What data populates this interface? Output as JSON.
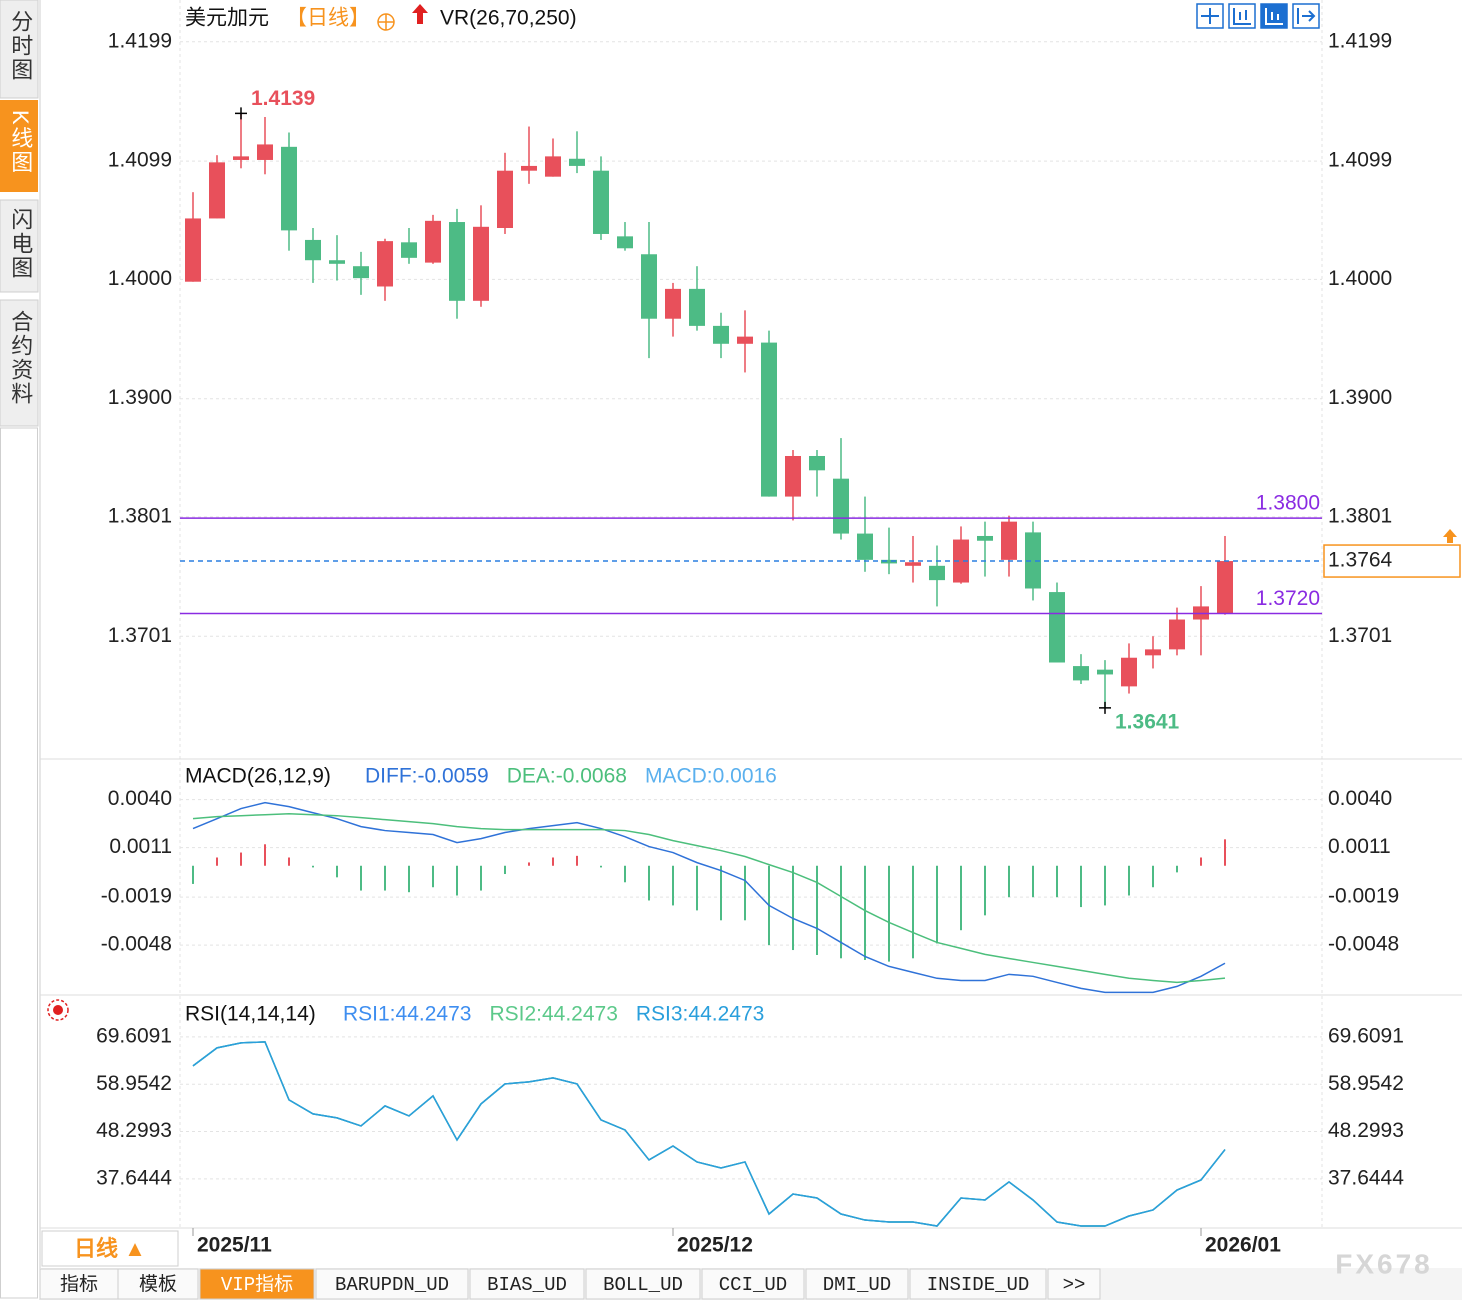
{
  "chart_data": [
    {
      "type": "candlestick",
      "title": "美元加元",
      "period": "【日线】",
      "indicator": "VR(26,70,250)",
      "up_color": "#e8505b",
      "down_color": "#4dbb85",
      "open": [
        1.3998,
        1.4051,
        1.41,
        1.41,
        1.4111,
        1.4033,
        1.4016,
        1.4011,
        1.3994,
        1.4031,
        1.4014,
        1.4048,
        1.3982,
        1.4043,
        1.4091,
        1.4086,
        1.4101,
        1.4091,
        1.4036,
        1.4021,
        1.3967,
        1.3992,
        1.3961,
        1.3946,
        1.3947,
        1.3818,
        1.3852,
        1.3833,
        1.3787,
        1.3765,
        1.376,
        1.376,
        1.3746,
        1.3785,
        1.3765,
        1.3788,
        1.3738,
        1.3676,
        1.3673,
        1.3659,
        1.3685,
        1.369,
        1.3715,
        1.372
      ],
      "high": [
        1.4073,
        1.4104,
        1.4139,
        1.4136,
        1.4123,
        1.4043,
        1.4037,
        1.4023,
        1.4034,
        1.4043,
        1.4054,
        1.4059,
        1.4062,
        1.4106,
        1.4128,
        1.4118,
        1.4124,
        1.4103,
        1.4048,
        1.4048,
        1.3997,
        1.4011,
        1.3972,
        1.3974,
        1.3957,
        1.3857,
        1.3857,
        1.3867,
        1.3818,
        1.3792,
        1.3785,
        1.3777,
        1.3793,
        1.3797,
        1.3802,
        1.3797,
        1.3746,
        1.3686,
        1.3681,
        1.3695,
        1.3701,
        1.3725,
        1.3743,
        1.3785
      ],
      "low": [
        1.3998,
        1.4051,
        1.4093,
        1.4088,
        1.4024,
        1.3997,
        1.3999,
        1.3987,
        1.3982,
        1.4013,
        1.4013,
        1.3967,
        1.3977,
        1.4038,
        1.408,
        1.4086,
        1.4089,
        1.4033,
        1.4024,
        1.3934,
        1.3952,
        1.3957,
        1.3934,
        1.3922,
        1.3818,
        1.3798,
        1.3818,
        1.3782,
        1.3755,
        1.3753,
        1.3746,
        1.3726,
        1.3745,
        1.3751,
        1.3751,
        1.3731,
        1.3679,
        1.3661,
        1.3641,
        1.3653,
        1.3674,
        1.3685,
        1.3685,
        1.3719
      ],
      "close": [
        1.4051,
        1.4098,
        1.4103,
        1.4113,
        1.4041,
        1.4016,
        1.4013,
        1.4001,
        1.4032,
        1.4018,
        1.4049,
        1.3982,
        1.4044,
        1.4091,
        1.4095,
        1.4103,
        1.4095,
        1.4038,
        1.4026,
        1.3967,
        1.3992,
        1.3961,
        1.3946,
        1.3952,
        1.3818,
        1.3852,
        1.384,
        1.3787,
        1.3765,
        1.3762,
        1.3763,
        1.3748,
        1.3782,
        1.3781,
        1.3797,
        1.3741,
        1.3679,
        1.3664,
        1.3669,
        1.3683,
        1.369,
        1.3715,
        1.3726,
        1.3764
      ],
      "ylim": [
        1.3599,
        1.4234
      ],
      "yticks": [
        1.4199,
        1.4099,
        {
          "value": 1.4,
          "label": "1.4000"
        },
        {
          "value": 1.39,
          "label": "1.3900"
        },
        1.3801,
        1.3701
      ],
      "grid": true,
      "max_label": 1.4139,
      "min_label": 1.3641,
      "hlines": [
        {
          "value": 1.38,
          "label": "1.3800",
          "color": "#8a2be2"
        },
        {
          "value": 1.372,
          "label": "1.3720",
          "color": "#8a2be2"
        }
      ],
      "last_price": 1.3764,
      "last_price_color": "#f7931e",
      "last_line_color": "#2a7fe0"
    },
    {
      "type": "combo",
      "title": "MACD(26,12,9)",
      "series": [
        {
          "name": "DIFF:-0.0059",
          "type": "line",
          "color": "#2f72d8",
          "values": [
            0.00225,
            0.00285,
            0.00346,
            0.00382,
            0.00358,
            0.00321,
            0.00285,
            0.00237,
            0.00213,
            0.00201,
            0.00189,
            0.0014,
            0.00164,
            0.00201,
            0.00225,
            0.00243,
            0.00261,
            0.00225,
            0.00176,
            0.00116,
            0.0008,
            0.00019,
            -0.00029,
            -0.00089,
            -0.0024,
            -0.00319,
            -0.00379,
            -0.00464,
            -0.00549,
            -0.00609,
            -0.00645,
            -0.00681,
            -0.00694,
            -0.00694,
            -0.00657,
            -0.00669,
            -0.00706,
            -0.00742,
            -0.00766,
            -0.00766,
            -0.00766,
            -0.0073,
            -0.00669,
            -0.0059
          ]
        },
        {
          "name": "DEA:-0.0068",
          "type": "line",
          "color": "#4cbf7c",
          "values": [
            0.00285,
            0.00297,
            0.00303,
            0.00309,
            0.00315,
            0.00309,
            0.00303,
            0.00291,
            0.00279,
            0.00267,
            0.00255,
            0.00237,
            0.00225,
            0.00219,
            0.00219,
            0.00219,
            0.00219,
            0.00219,
            0.00213,
            0.00189,
            0.00152,
            0.00122,
            0.00092,
            0.00056,
            7e-05,
            -0.00041,
            -0.00101,
            -0.00186,
            -0.00271,
            -0.00343,
            -0.00404,
            -0.00464,
            -0.005,
            -0.00536,
            -0.00561,
            -0.00585,
            -0.00609,
            -0.00633,
            -0.00657,
            -0.00681,
            -0.00694,
            -0.00706,
            -0.00694,
            -0.0068
          ]
        },
        {
          "name": "MACD:0.0016",
          "type": "bar",
          "color": "#5ab0ee",
          "up_color": "#e8505b",
          "down_color": "#4dbb85",
          "values": [
            -0.0011,
            0.0005,
            0.0008,
            0.0013,
            0.0005,
            -0.0001,
            -0.0007,
            -0.0015,
            -0.0015,
            -0.0016,
            -0.0013,
            -0.0018,
            -0.0015,
            -0.0005,
            0.0002,
            0.0005,
            0.0006,
            -0.0001,
            -0.001,
            -0.0021,
            -0.0024,
            -0.0027,
            -0.0033,
            -0.0033,
            -0.0048,
            -0.0051,
            -0.0054,
            -0.0056,
            -0.0057,
            -0.0058,
            -0.0056,
            -0.0047,
            -0.0039,
            -0.003,
            -0.0019,
            -0.0019,
            -0.0019,
            -0.0025,
            -0.0024,
            -0.0018,
            -0.0013,
            -0.0004,
            0.0005,
            0.0016
          ]
        }
      ],
      "ylim": [
        -0.0077,
        0.0064
      ],
      "yticks": [
        {
          "value": 0.004,
          "label": "0.0040"
        },
        0.0011,
        -0.0019,
        -0.0048
      ],
      "grid": true
    },
    {
      "type": "line",
      "title": "RSI(14,14,14)",
      "categories": [
        "2025/11",
        null,
        null,
        null,
        null,
        null,
        null,
        null,
        null,
        null,
        null,
        null,
        null,
        null,
        null,
        null,
        null,
        null,
        null,
        null,
        "2025/12",
        null,
        null,
        null,
        null,
        null,
        null,
        null,
        null,
        null,
        null,
        null,
        null,
        null,
        null,
        null,
        null,
        null,
        null,
        null,
        null,
        null,
        "2026/01",
        null
      ],
      "series": [
        {
          "name": "RSI1:44.2473",
          "color": "#3e8ef0",
          "values": [
            63.08,
            67.13,
            68.26,
            68.48,
            55.42,
            52.27,
            51.37,
            49.56,
            54.07,
            51.82,
            56.32,
            46.41,
            54.52,
            59.02,
            59.47,
            60.37,
            59.02,
            50.92,
            48.66,
            41.91,
            45.06,
            41.46,
            40.11,
            41.46,
            29.75,
            34.25,
            33.35,
            29.75,
            28.39,
            27.94,
            27.94,
            27.04,
            33.35,
            32.9,
            36.96,
            32.9,
            27.94,
            27.04,
            27.04,
            29.3,
            30.65,
            35.15,
            37.4,
            44.2473
          ]
        },
        {
          "name": "RSI2:44.2473",
          "color": "#5cc98a",
          "values": [
            63.08,
            67.13,
            68.26,
            68.48,
            55.42,
            52.27,
            51.37,
            49.56,
            54.07,
            51.82,
            56.32,
            46.41,
            54.52,
            59.02,
            59.47,
            60.37,
            59.02,
            50.92,
            48.66,
            41.91,
            45.06,
            41.46,
            40.11,
            41.46,
            29.75,
            34.25,
            33.35,
            29.75,
            28.39,
            27.94,
            27.94,
            27.04,
            33.35,
            32.9,
            36.96,
            32.9,
            27.94,
            27.04,
            27.04,
            29.3,
            30.65,
            35.15,
            37.4,
            44.2473
          ]
        },
        {
          "name": "RSI3:44.2473",
          "color": "#2a9fdc",
          "values": [
            63.08,
            67.13,
            68.26,
            68.48,
            55.42,
            52.27,
            51.37,
            49.56,
            54.07,
            51.82,
            56.32,
            46.41,
            54.52,
            59.02,
            59.47,
            60.37,
            59.02,
            50.92,
            48.66,
            41.91,
            45.06,
            41.46,
            40.11,
            41.46,
            29.75,
            34.25,
            33.35,
            29.75,
            28.39,
            27.94,
            27.94,
            27.04,
            33.35,
            32.9,
            36.96,
            32.9,
            27.94,
            27.04,
            27.04,
            29.3,
            30.65,
            35.15,
            37.4,
            44.2473
          ]
        }
      ],
      "ylim": [
        26.6,
        78.8
      ],
      "yticks": [
        69.6091,
        58.9542,
        48.2993,
        37.6444
      ],
      "grid": true
    }
  ],
  "ui": {
    "sidebar_tabs": [
      "分时图",
      "K线图",
      "闪电图",
      "合约资料"
    ],
    "period_button": "日线 ▲",
    "bottom_tabs": [
      "指标",
      "模板",
      "VIP指标",
      "BARUPDN_UD",
      "BIAS_UD",
      "BOLL_UD",
      "CCI_UD",
      "DMI_UD",
      "INSIDE_UD",
      ">>"
    ],
    "watermark": "FX678"
  }
}
